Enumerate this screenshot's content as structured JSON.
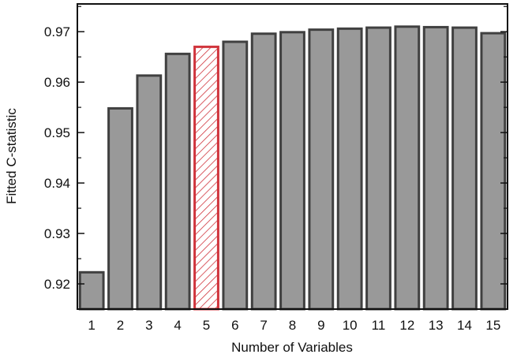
{
  "chart_data": {
    "type": "bar",
    "title": "",
    "xlabel": "Number of Variables",
    "ylabel": "Fitted C-statistic",
    "categories": [
      "1",
      "2",
      "3",
      "4",
      "5",
      "6",
      "7",
      "8",
      "9",
      "10",
      "11",
      "12",
      "13",
      "14",
      "15"
    ],
    "values": [
      0.9223,
      0.9548,
      0.9613,
      0.9656,
      0.967,
      0.968,
      0.9696,
      0.9699,
      0.9704,
      0.9706,
      0.9708,
      0.971,
      0.9709,
      0.9708,
      0.9697
    ],
    "ylim": [
      0.915,
      0.9755
    ],
    "yticks": [
      0.92,
      0.93,
      0.94,
      0.95,
      0.96,
      0.97
    ],
    "ytick_labels": [
      "0.92",
      "0.93",
      "0.94",
      "0.95",
      "0.96",
      "0.97"
    ],
    "minor_ytick_step": 0.005,
    "grid": false,
    "highlight_category": "5",
    "colors": {
      "bar_fill": "#999999",
      "bar_edge": "#404040",
      "highlight_edge": "#d0343c",
      "highlight_hatch": "#d0343c"
    }
  }
}
